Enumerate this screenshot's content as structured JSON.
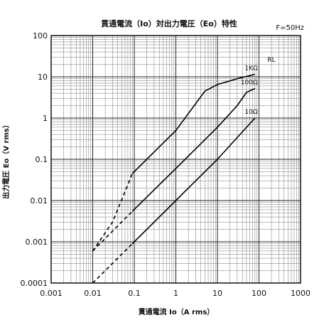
{
  "chart_data": {
    "type": "line",
    "title": "貫通電流（Io）対出力電圧（Eo）特性",
    "annotation": "F=50Hz",
    "xlabel": "貫通電流 Io（A rms）",
    "ylabel": "出力電圧 Eo（V rms）",
    "x_scale": "log",
    "y_scale": "log",
    "xlim": [
      0.001,
      1000
    ],
    "ylim": [
      0.0001,
      100
    ],
    "x_ticks": [
      "0.001",
      "0.01",
      "0.1",
      "1",
      "10",
      "100",
      "1000"
    ],
    "y_ticks": [
      "0.0001",
      "0.001",
      "0.01",
      "0.1",
      "1",
      "10",
      "100"
    ],
    "legend_title": "RL",
    "grid": true,
    "series": [
      {
        "name": "1KΩ",
        "dashed": [
          [
            0.01,
            0.0006
          ],
          [
            0.03,
            0.003
          ],
          [
            0.09,
            0.045
          ]
        ],
        "solid": [
          [
            0.09,
            0.045
          ],
          [
            1,
            0.5
          ],
          [
            5,
            4.5
          ],
          [
            10,
            6.5
          ],
          [
            30,
            9
          ],
          [
            80,
            11.5
          ]
        ]
      },
      {
        "name": "100Ω",
        "dashed": [
          [
            0.01,
            0.0006
          ],
          [
            0.09,
            0.0055
          ]
        ],
        "solid": [
          [
            0.09,
            0.0055
          ],
          [
            1,
            0.06
          ],
          [
            10,
            0.6
          ],
          [
            30,
            2
          ],
          [
            50,
            4.2
          ],
          [
            80,
            5.2
          ]
        ]
      },
      {
        "name": "10Ω",
        "dashed": [
          [
            0.01,
            0.0001
          ],
          [
            0.09,
            0.0009
          ]
        ],
        "solid": [
          [
            0.09,
            0.0009
          ],
          [
            1,
            0.01
          ],
          [
            10,
            0.1
          ],
          [
            80,
            1
          ]
        ]
      }
    ]
  }
}
